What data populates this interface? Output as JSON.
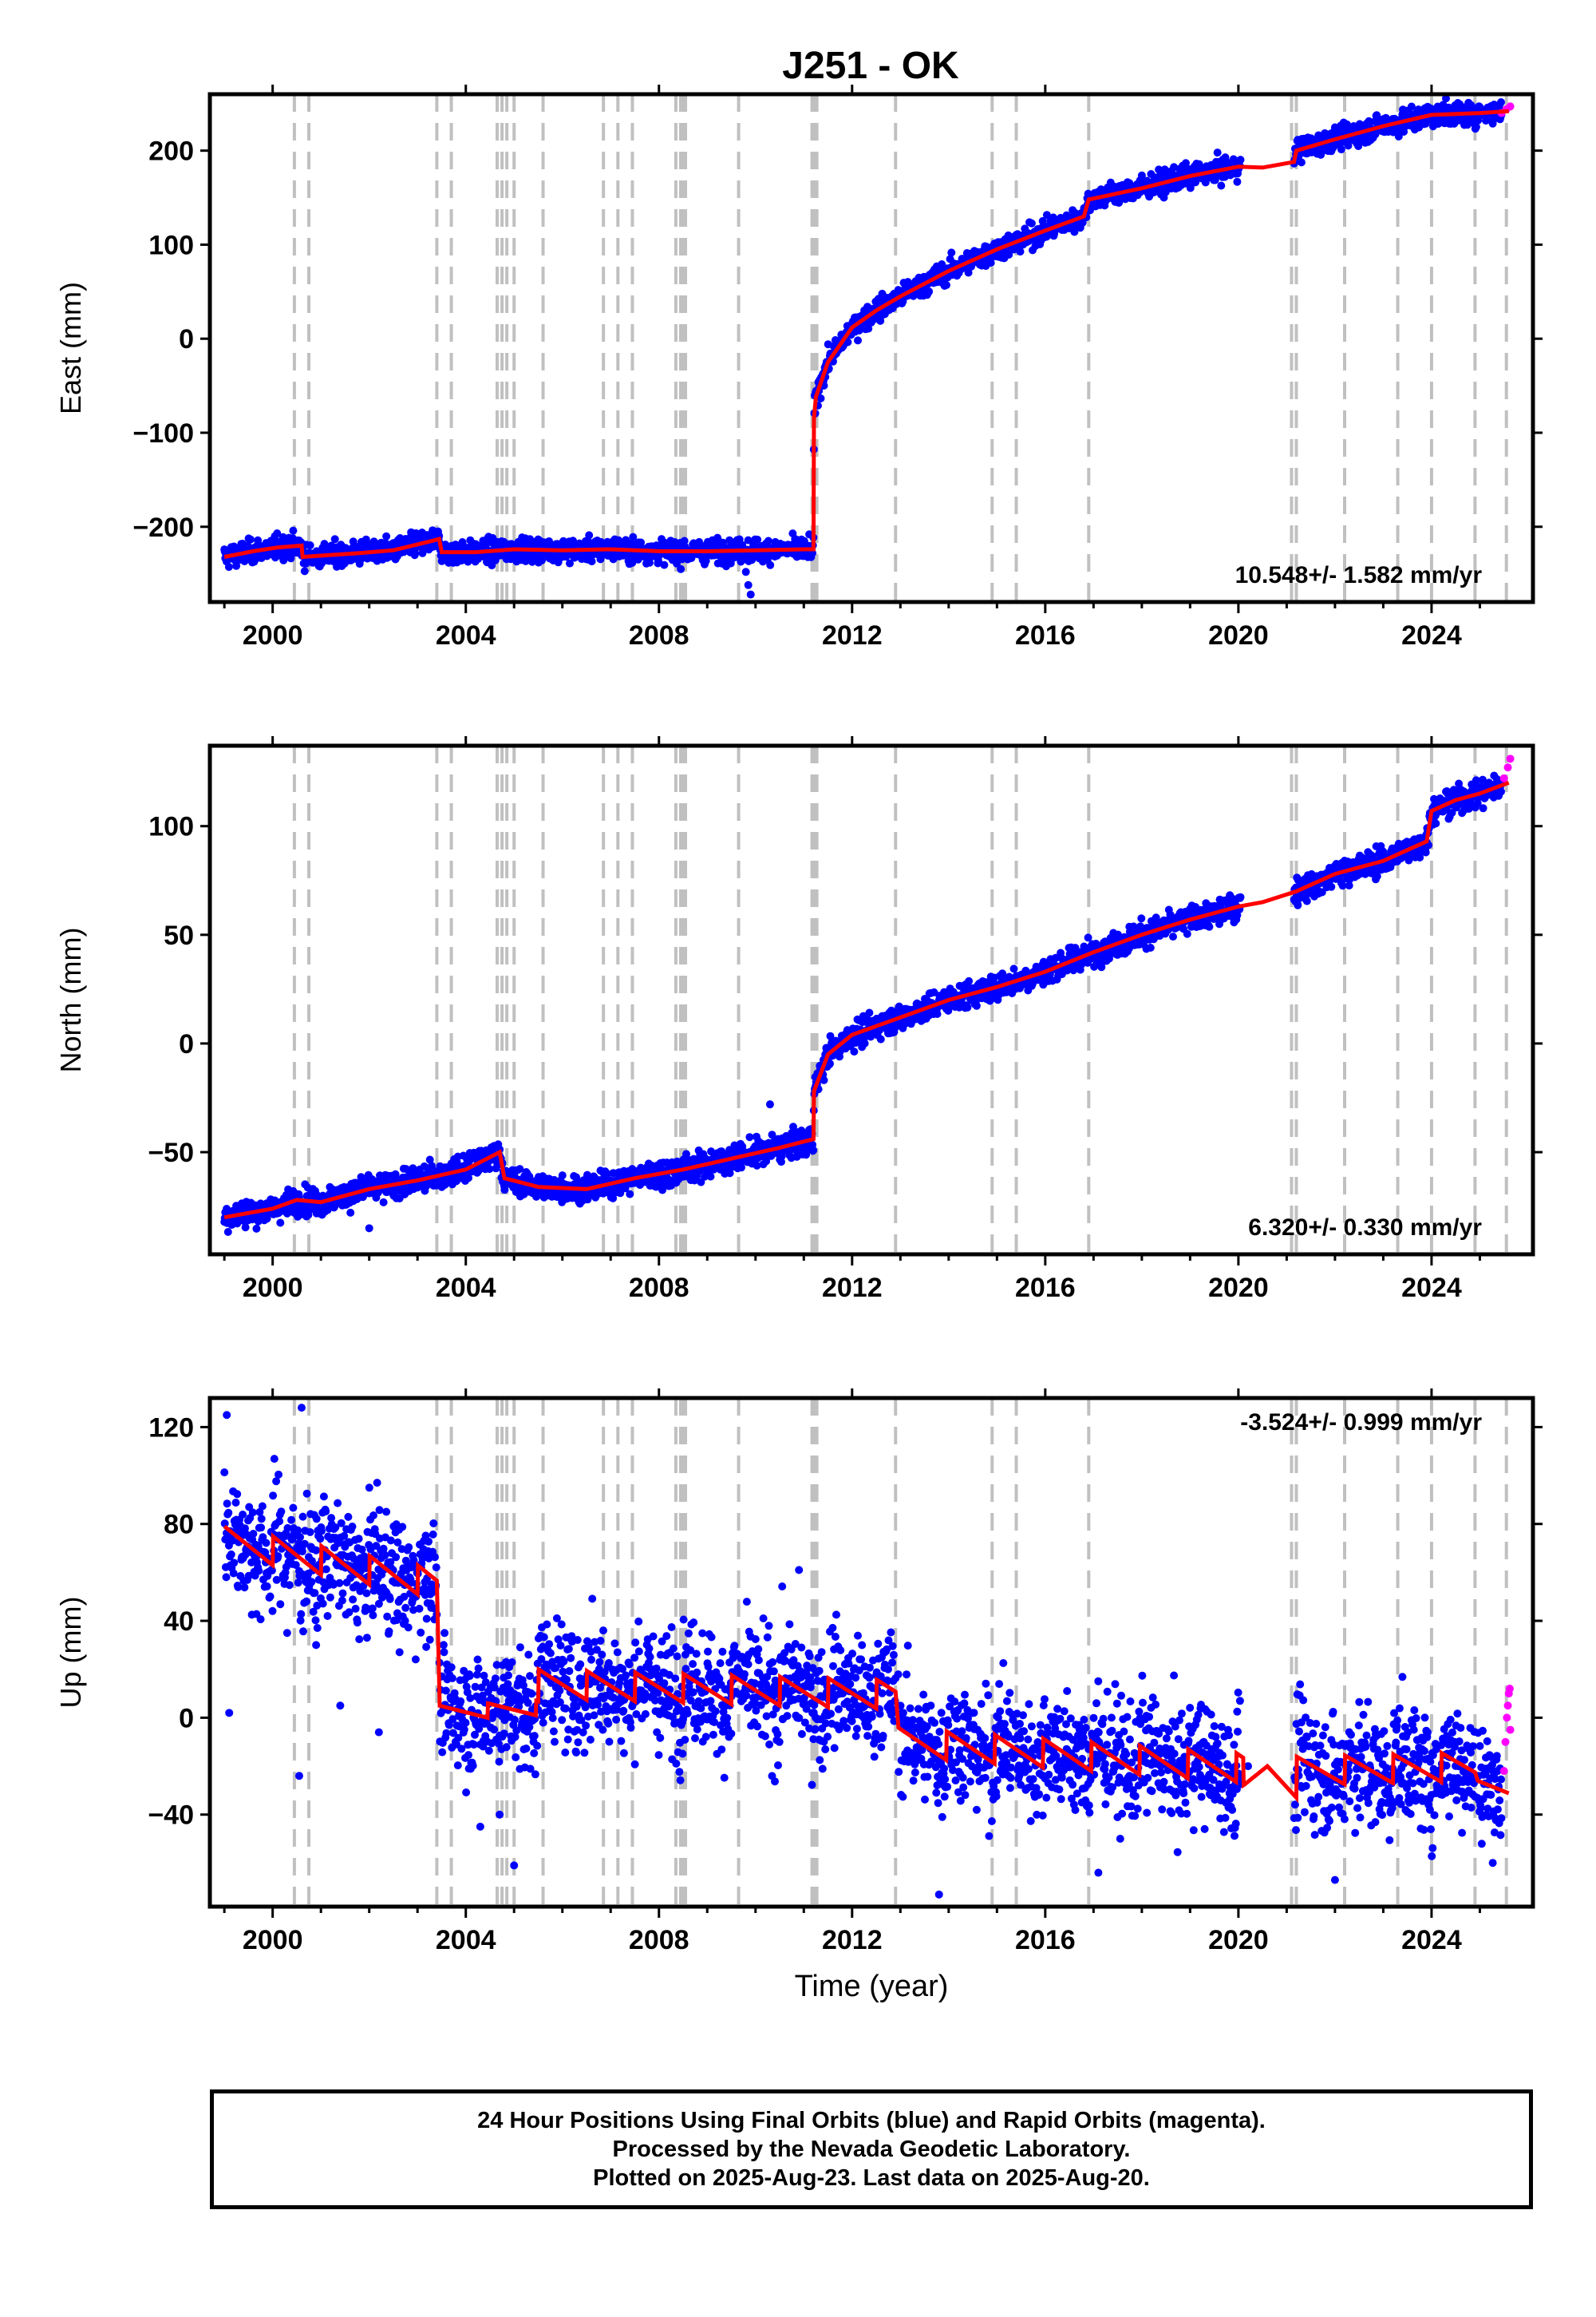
{
  "title": "J251 - OK",
  "footer": {
    "line1": "24 Hour Positions Using Final Orbits (blue) and Rapid Orbits (magenta).",
    "line2": "Processed by the Nevada Geodetic Laboratory.",
    "line3": "Plotted on 2025-Aug-23. Last data on 2025-Aug-20."
  },
  "colors": {
    "final_orbits": "#0000ff",
    "rapid_orbits": "#ff00ff",
    "model": "#ff0000",
    "event_lines": "#c0c0c0"
  },
  "chart_data": [
    {
      "type": "scatter",
      "ylabel": "East (mm)",
      "xlabel": "",
      "xlim": [
        1998.7,
        2026.1
      ],
      "ylim": [
        -280,
        260
      ],
      "yticks": [
        -200,
        -100,
        0,
        100,
        200
      ],
      "ytick_labels": [
        "−200",
        "−100",
        "0",
        "100",
        "200"
      ],
      "xticks": [
        2000,
        2004,
        2008,
        2012,
        2016,
        2020,
        2024
      ],
      "grid": false,
      "annotation": "10.548+/- 1.582 mm/yr",
      "annotation_position": "bottom-right",
      "events": [
        2000.45,
        2000.75,
        2003.4,
        2003.7,
        2004.65,
        2004.75,
        2004.85,
        2005.0,
        2005.6,
        2006.85,
        2007.15,
        2007.45,
        2008.35,
        2008.45,
        2008.5,
        2008.55,
        2009.65,
        2011.17,
        2011.22,
        2011.27,
        2012.9,
        2014.9,
        2015.4,
        2016.9,
        2021.1,
        2021.2,
        2022.2,
        2023.3,
        2024.0,
        2024.9,
        2025.55
      ],
      "model": [
        [
          1999.0,
          -232
        ],
        [
          1999.6,
          -226
        ],
        [
          2000.1,
          -222
        ],
        [
          2000.6,
          -220
        ],
        [
          2000.62,
          -232
        ],
        [
          2001.2,
          -230
        ],
        [
          2001.8,
          -228
        ],
        [
          2002.5,
          -225
        ],
        [
          2003.3,
          -215
        ],
        [
          2003.45,
          -213
        ],
        [
          2003.5,
          -227
        ],
        [
          2004.2,
          -227
        ],
        [
          2005.0,
          -224
        ],
        [
          2006.0,
          -225
        ],
        [
          2007.0,
          -224
        ],
        [
          2008.0,
          -226
        ],
        [
          2009.0,
          -226
        ],
        [
          2010.0,
          -225
        ],
        [
          2011.0,
          -224
        ],
        [
          2011.2,
          -224
        ],
        [
          2011.21,
          -85
        ],
        [
          2011.25,
          -62
        ],
        [
          2011.5,
          -25
        ],
        [
          2012.0,
          12
        ],
        [
          2012.5,
          30
        ],
        [
          2013.0,
          45
        ],
        [
          2014.0,
          72
        ],
        [
          2015.0,
          95
        ],
        [
          2016.0,
          115
        ],
        [
          2016.8,
          130
        ],
        [
          2016.9,
          148
        ],
        [
          2018.0,
          160
        ],
        [
          2019.0,
          173
        ],
        [
          2020.0,
          183
        ],
        [
          2020.5,
          182
        ],
        [
          2021.15,
          188
        ],
        [
          2021.2,
          200
        ],
        [
          2022.0,
          212
        ],
        [
          2023.0,
          226
        ],
        [
          2024.0,
          238
        ],
        [
          2025.0,
          240
        ],
        [
          2025.6,
          242
        ]
      ],
      "noise_sd": 6,
      "rapid": [
        [
          2025.45,
          240
        ],
        [
          2025.55,
          244
        ],
        [
          2025.63,
          247
        ]
      ],
      "outliers": [
        [
          2009.8,
          -248
        ],
        [
          2009.85,
          -262
        ],
        [
          2009.9,
          -272
        ],
        [
          2011.1,
          -228
        ]
      ]
    },
    {
      "type": "scatter",
      "ylabel": "North (mm)",
      "xlabel": "",
      "xlim": [
        1998.7,
        2026.1
      ],
      "ylim": [
        -97,
        137
      ],
      "yticks": [
        -50,
        0,
        50,
        100
      ],
      "ytick_labels": [
        "−50",
        "0",
        "50",
        "100"
      ],
      "xticks": [
        2000,
        2004,
        2008,
        2012,
        2016,
        2020,
        2024
      ],
      "grid": false,
      "annotation": "6.320+/- 0.330 mm/yr",
      "annotation_position": "bottom-right",
      "events": [
        2000.45,
        2000.75,
        2003.4,
        2003.7,
        2004.65,
        2004.75,
        2004.85,
        2005.0,
        2005.6,
        2006.85,
        2007.15,
        2007.45,
        2008.35,
        2008.45,
        2008.5,
        2008.55,
        2009.65,
        2011.17,
        2011.22,
        2011.27,
        2012.9,
        2014.9,
        2015.4,
        2016.9,
        2021.1,
        2021.2,
        2022.2,
        2023.3,
        2024.0,
        2024.9,
        2025.55
      ],
      "model": [
        [
          1999.0,
          -80
        ],
        [
          2000.0,
          -76
        ],
        [
          2000.5,
          -72
        ],
        [
          2001.0,
          -73
        ],
        [
          2002.0,
          -67
        ],
        [
          2003.0,
          -63
        ],
        [
          2004.0,
          -58
        ],
        [
          2004.7,
          -50
        ],
        [
          2004.8,
          -62
        ],
        [
          2005.5,
          -66
        ],
        [
          2006.5,
          -67
        ],
        [
          2007.5,
          -62
        ],
        [
          2008.5,
          -58
        ],
        [
          2009.5,
          -53
        ],
        [
          2010.5,
          -48
        ],
        [
          2011.2,
          -44
        ],
        [
          2011.21,
          -22
        ],
        [
          2011.5,
          -5
        ],
        [
          2012.0,
          4
        ],
        [
          2013.0,
          12
        ],
        [
          2014.0,
          20
        ],
        [
          2015.0,
          26
        ],
        [
          2016.0,
          33
        ],
        [
          2017.0,
          42
        ],
        [
          2018.0,
          50
        ],
        [
          2019.0,
          57
        ],
        [
          2020.0,
          63
        ],
        [
          2020.5,
          65
        ],
        [
          2021.2,
          70
        ],
        [
          2022.0,
          78
        ],
        [
          2023.0,
          84
        ],
        [
          2023.9,
          93
        ],
        [
          2024.0,
          107
        ],
        [
          2024.5,
          112
        ],
        [
          2025.0,
          115
        ],
        [
          2025.6,
          120
        ]
      ],
      "noise_sd": 3,
      "rapid": [
        [
          2025.5,
          122
        ],
        [
          2025.58,
          127
        ],
        [
          2025.63,
          131
        ]
      ],
      "outliers": [
        [
          2002.0,
          -85
        ],
        [
          2010.3,
          -28
        ]
      ]
    },
    {
      "type": "scatter",
      "ylabel": "Up (mm)",
      "xlabel": "Time (year)",
      "xlim": [
        1998.7,
        2026.1
      ],
      "ylim": [
        -78,
        132
      ],
      "yticks": [
        -40,
        0,
        40,
        80,
        120
      ],
      "ytick_labels": [
        "−40",
        "0",
        "40",
        "80",
        "120"
      ],
      "xticks": [
        2000,
        2004,
        2008,
        2012,
        2016,
        2020,
        2024
      ],
      "grid": false,
      "annotation": "-3.524+/- 0.999 mm/yr",
      "annotation_position": "top-right",
      "events": [
        2000.45,
        2000.75,
        2003.4,
        2003.7,
        2004.65,
        2004.75,
        2004.85,
        2005.0,
        2005.6,
        2006.85,
        2007.15,
        2007.45,
        2008.35,
        2008.45,
        2008.5,
        2008.55,
        2009.65,
        2011.17,
        2011.22,
        2011.27,
        2012.9,
        2014.9,
        2015.4,
        2016.9,
        2021.1,
        2021.2,
        2022.2,
        2023.3,
        2024.0,
        2024.9,
        2025.55
      ],
      "model_segments": [
        {
          "start": 1999.0,
          "end": 2003.4,
          "base": 73,
          "trend": -4,
          "amp": 6
        },
        {
          "start": 2003.45,
          "end": 2005.5,
          "base": 2,
          "trend": 1,
          "amp": 3
        },
        {
          "start": 2005.5,
          "end": 2012.9,
          "base": 14,
          "trend": -0.6,
          "amp": 6
        },
        {
          "start": 2012.95,
          "end": 2020.1,
          "base": -10,
          "trend": -1.5,
          "amp": 6
        },
        {
          "start": 2021.2,
          "end": 2024.9,
          "base": -22,
          "trend": 0.5,
          "amp": 6
        },
        {
          "start": 2024.95,
          "end": 2025.6,
          "base": -30,
          "trend": 0,
          "amp": 4
        }
      ],
      "model_gap": [
        [
          2020.1,
          -28
        ],
        [
          2020.6,
          -20
        ],
        [
          2021.2,
          -33
        ]
      ],
      "noise_sd": 12,
      "rapid": [
        [
          2025.5,
          -22
        ],
        [
          2025.53,
          -10
        ],
        [
          2025.56,
          0
        ],
        [
          2025.58,
          5
        ],
        [
          2025.6,
          10
        ],
        [
          2025.62,
          12
        ],
        [
          2025.63,
          -5
        ]
      ],
      "outliers": [
        [
          1999.05,
          125
        ],
        [
          1999.1,
          2
        ],
        [
          2000.6,
          128
        ],
        [
          2000.3,
          35
        ],
        [
          2000.55,
          -24
        ],
        [
          2000.9,
          30
        ],
        [
          2001.4,
          5
        ],
        [
          2002.2,
          -6
        ],
        [
          2004.3,
          -45
        ],
        [
          2004.7,
          -40
        ],
        [
          2005.0,
          -61
        ],
        [
          2010.9,
          61
        ],
        [
          2013.8,
          -73
        ],
        [
          2017.1,
          -64
        ],
        [
          2022.0,
          -67
        ],
        [
          2020.2,
          -20
        ]
      ]
    }
  ]
}
